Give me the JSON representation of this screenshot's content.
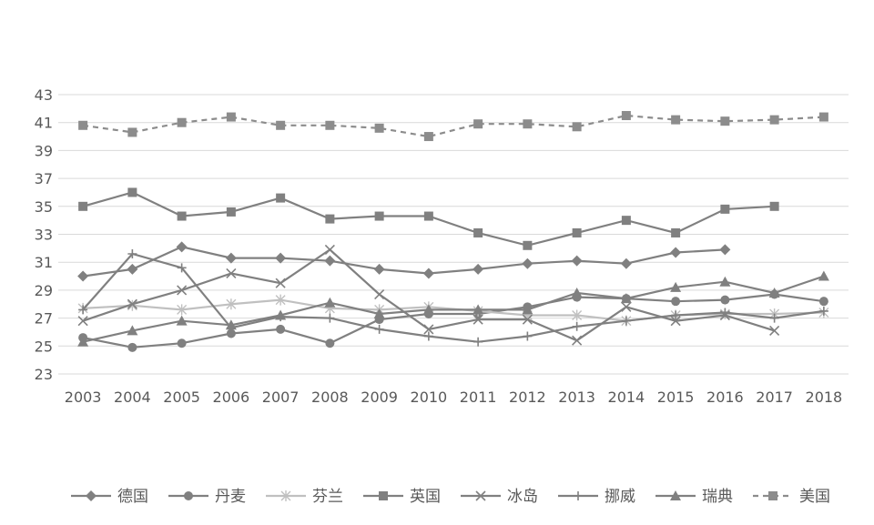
{
  "chart_data": {
    "type": "line",
    "title": "",
    "xlabel": "",
    "ylabel": "",
    "ylim": [
      23,
      43
    ],
    "yticks": [
      23,
      25,
      27,
      29,
      31,
      33,
      35,
      37,
      39,
      41,
      43
    ],
    "categories": [
      "2003",
      "2004",
      "2005",
      "2006",
      "2007",
      "2008",
      "2009",
      "2010",
      "2011",
      "2012",
      "2013",
      "2014",
      "2015",
      "2016",
      "2017",
      "2018"
    ],
    "grid": "horizontal",
    "legend_position": "bottom",
    "series": [
      {
        "name": "德国",
        "marker": "diamond",
        "dash": "solid",
        "color": "#808080",
        "values": [
          30.0,
          30.5,
          32.1,
          31.3,
          31.3,
          31.1,
          30.5,
          30.2,
          30.5,
          30.9,
          31.1,
          30.9,
          31.7,
          31.9,
          null,
          null
        ]
      },
      {
        "name": "丹麦",
        "marker": "circle",
        "dash": "solid",
        "color": "#808080",
        "values": [
          25.6,
          24.9,
          25.2,
          25.9,
          26.2,
          25.2,
          26.9,
          27.3,
          27.3,
          27.8,
          28.5,
          28.4,
          28.2,
          28.3,
          28.7,
          28.2
        ]
      },
      {
        "name": "芬兰",
        "marker": "asterisk",
        "dash": "solid",
        "color": "#c0c0c0",
        "values": [
          27.7,
          27.9,
          27.6,
          28.0,
          28.3,
          27.7,
          27.6,
          27.8,
          27.5,
          27.2,
          27.2,
          26.8,
          27.2,
          27.3,
          27.3,
          27.4
        ]
      },
      {
        "name": "英国",
        "marker": "square",
        "dash": "solid",
        "color": "#808080",
        "values": [
          35.0,
          36.0,
          34.3,
          34.6,
          35.6,
          34.1,
          34.3,
          34.3,
          33.1,
          32.2,
          33.1,
          34.0,
          33.1,
          34.8,
          35.0,
          null
        ]
      },
      {
        "name": "冰岛",
        "marker": "x",
        "dash": "solid",
        "color": "#808080",
        "values": [
          26.8,
          28.0,
          29.0,
          30.2,
          29.5,
          31.9,
          28.7,
          26.2,
          26.9,
          26.9,
          25.4,
          27.8,
          26.8,
          27.2,
          26.1,
          null
        ]
      },
      {
        "name": "挪威",
        "marker": "plus",
        "dash": "solid",
        "color": "#808080",
        "values": [
          27.6,
          31.6,
          30.6,
          26.3,
          27.1,
          27.0,
          26.2,
          25.7,
          25.3,
          25.7,
          26.4,
          26.8,
          27.2,
          27.4,
          27.0,
          27.5
        ]
      },
      {
        "name": "瑞典",
        "marker": "triangle",
        "dash": "solid",
        "color": "#808080",
        "values": [
          25.3,
          26.1,
          26.8,
          26.5,
          27.2,
          28.1,
          27.3,
          27.6,
          27.6,
          27.6,
          28.8,
          28.4,
          29.2,
          29.6,
          28.8,
          30.0
        ]
      },
      {
        "name": "美国",
        "marker": "square",
        "dash": "dashed",
        "color": "#8c8c8c",
        "values": [
          40.8,
          40.3,
          41.0,
          41.4,
          40.8,
          40.8,
          40.6,
          40.0,
          40.9,
          40.9,
          40.7,
          41.5,
          41.2,
          41.1,
          41.2,
          41.4
        ]
      }
    ]
  }
}
